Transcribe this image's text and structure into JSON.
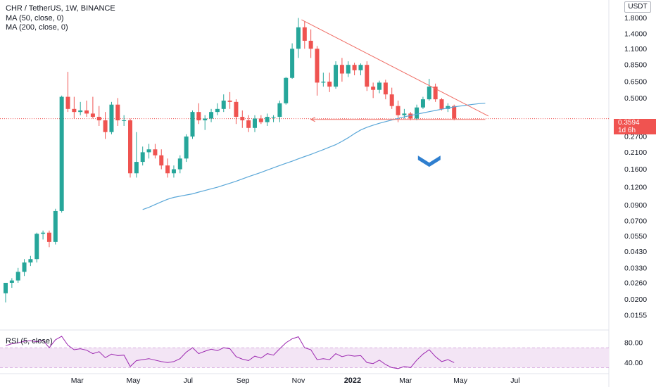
{
  "header": {
    "symbol_line": "CHR / TetherUS, 1W, BINANCE",
    "ma50_label": "MA (50, close, 0)",
    "ma200_label": "MA (200, close, 0)",
    "rsi_label": "RSI (5, close)",
    "currency": "USDT"
  },
  "price_tag": {
    "price": "0.3594",
    "countdown": "1d 6h",
    "color": "#f05350"
  },
  "colors": {
    "up": "#26a69a",
    "down": "#ef5350",
    "ma": "#5aa7d8",
    "trendline": "#ef6b63",
    "rsi": "#9c27b0",
    "rsi_band": "#f3e5f5",
    "arrow": "#2f7fcf"
  },
  "chart_data": {
    "type": "candlestick",
    "title": "CHR / TetherUS, 1W, BINANCE",
    "price_axis": {
      "scale": "log",
      "range": [
        0.0125,
        2.4
      ],
      "ticks": [
        "1.8000",
        "1.4000",
        "1.1000",
        "0.8500",
        "0.6500",
        "0.5000",
        "0.2700",
        "0.2100",
        "0.1600",
        "0.1200",
        "0.0900",
        "0.0700",
        "0.0550",
        "0.0430",
        "0.0330",
        "0.0260",
        "0.0200",
        "0.0155"
      ]
    },
    "time_axis": {
      "ticks": [
        {
          "label": "Mar",
          "week": 11.5
        },
        {
          "label": "May",
          "week": 20.5
        },
        {
          "label": "Jul",
          "week": 29.3
        },
        {
          "label": "Sep",
          "week": 38.1
        },
        {
          "label": "Nov",
          "week": 47
        },
        {
          "label": "2022",
          "week": 55.7
        },
        {
          "label": "Mar",
          "week": 64.2
        },
        {
          "label": "May",
          "week": 73
        },
        {
          "label": "Jul",
          "week": 81.8
        }
      ]
    },
    "candles": [
      [
        0.022,
        0.026,
        0.019,
        0.026
      ],
      [
        0.026,
        0.028,
        0.024,
        0.027
      ],
      [
        0.027,
        0.033,
        0.026,
        0.031
      ],
      [
        0.031,
        0.038,
        0.029,
        0.036
      ],
      [
        0.036,
        0.04,
        0.034,
        0.038
      ],
      [
        0.038,
        0.058,
        0.036,
        0.057
      ],
      [
        0.057,
        0.06,
        0.052,
        0.058
      ],
      [
        0.058,
        0.06,
        0.046,
        0.05
      ],
      [
        0.05,
        0.085,
        0.048,
        0.082
      ],
      [
        0.082,
        0.52,
        0.08,
        0.51
      ],
      [
        0.51,
        0.76,
        0.4,
        0.42
      ],
      [
        0.42,
        0.51,
        0.36,
        0.4
      ],
      [
        0.4,
        0.47,
        0.38,
        0.41
      ],
      [
        0.41,
        0.48,
        0.37,
        0.39
      ],
      [
        0.39,
        0.51,
        0.36,
        0.37
      ],
      [
        0.37,
        0.44,
        0.32,
        0.35
      ],
      [
        0.35,
        0.4,
        0.26,
        0.29
      ],
      [
        0.29,
        0.47,
        0.28,
        0.45
      ],
      [
        0.45,
        0.5,
        0.32,
        0.35
      ],
      [
        0.35,
        0.38,
        0.32,
        0.35
      ],
      [
        0.35,
        0.36,
        0.14,
        0.15
      ],
      [
        0.15,
        0.29,
        0.14,
        0.18
      ],
      [
        0.18,
        0.23,
        0.17,
        0.21
      ],
      [
        0.21,
        0.24,
        0.19,
        0.22
      ],
      [
        0.22,
        0.24,
        0.19,
        0.2
      ],
      [
        0.2,
        0.22,
        0.16,
        0.17
      ],
      [
        0.17,
        0.19,
        0.14,
        0.15
      ],
      [
        0.15,
        0.17,
        0.14,
        0.16
      ],
      [
        0.16,
        0.2,
        0.15,
        0.19
      ],
      [
        0.19,
        0.28,
        0.18,
        0.27
      ],
      [
        0.27,
        0.41,
        0.26,
        0.4
      ],
      [
        0.4,
        0.46,
        0.33,
        0.35
      ],
      [
        0.35,
        0.38,
        0.3,
        0.36
      ],
      [
        0.36,
        0.42,
        0.34,
        0.4
      ],
      [
        0.4,
        0.46,
        0.38,
        0.42
      ],
      [
        0.42,
        0.53,
        0.4,
        0.48
      ],
      [
        0.48,
        0.55,
        0.42,
        0.47
      ],
      [
        0.47,
        0.49,
        0.33,
        0.37
      ],
      [
        0.37,
        0.41,
        0.31,
        0.35
      ],
      [
        0.35,
        0.38,
        0.29,
        0.31
      ],
      [
        0.31,
        0.38,
        0.29,
        0.36
      ],
      [
        0.36,
        0.38,
        0.33,
        0.34
      ],
      [
        0.34,
        0.39,
        0.32,
        0.37
      ],
      [
        0.37,
        0.38,
        0.34,
        0.37
      ],
      [
        0.37,
        0.48,
        0.34,
        0.46
      ],
      [
        0.46,
        0.7,
        0.45,
        0.69
      ],
      [
        0.69,
        1.2,
        0.68,
        1.1
      ],
      [
        1.1,
        1.8,
        0.95,
        1.55
      ],
      [
        1.55,
        1.7,
        1.1,
        1.25
      ],
      [
        1.25,
        1.5,
        0.95,
        1.1
      ],
      [
        1.1,
        1.15,
        0.52,
        0.64
      ],
      [
        0.64,
        0.75,
        0.6,
        0.65
      ],
      [
        0.65,
        0.75,
        0.55,
        0.6
      ],
      [
        0.6,
        0.9,
        0.58,
        0.85
      ],
      [
        0.85,
        0.95,
        0.65,
        0.74
      ],
      [
        0.74,
        0.9,
        0.7,
        0.85
      ],
      [
        0.85,
        0.88,
        0.72,
        0.78
      ],
      [
        0.78,
        0.87,
        0.72,
        0.85
      ],
      [
        0.85,
        0.9,
        0.56,
        0.6
      ],
      [
        0.6,
        0.64,
        0.5,
        0.57
      ],
      [
        0.57,
        0.66,
        0.54,
        0.64
      ],
      [
        0.64,
        0.67,
        0.49,
        0.53
      ],
      [
        0.53,
        0.59,
        0.42,
        0.44
      ],
      [
        0.44,
        0.48,
        0.34,
        0.38
      ],
      [
        0.38,
        0.42,
        0.36,
        0.39
      ],
      [
        0.39,
        0.4,
        0.35,
        0.36
      ],
      [
        0.36,
        0.45,
        0.35,
        0.43
      ],
      [
        0.43,
        0.51,
        0.42,
        0.49
      ],
      [
        0.49,
        0.68,
        0.48,
        0.6
      ],
      [
        0.6,
        0.63,
        0.47,
        0.49
      ],
      [
        0.49,
        0.5,
        0.41,
        0.42
      ],
      [
        0.42,
        0.46,
        0.4,
        0.44
      ],
      [
        0.44,
        0.45,
        0.35,
        0.3594
      ]
    ],
    "series": [
      {
        "name": "MA (50, close, 0)",
        "start_week": 22,
        "values": [
          0.084,
          0.087,
          0.091,
          0.095,
          0.099,
          0.102,
          0.104,
          0.106,
          0.108,
          0.111,
          0.114,
          0.117,
          0.12,
          0.124,
          0.128,
          0.132,
          0.137,
          0.142,
          0.147,
          0.152,
          0.158,
          0.164,
          0.17,
          0.176,
          0.182,
          0.189,
          0.196,
          0.203,
          0.211,
          0.219,
          0.228,
          0.237,
          0.25,
          0.265,
          0.283,
          0.3,
          0.313,
          0.324,
          0.334,
          0.343,
          0.352,
          0.361,
          0.37,
          0.378,
          0.386,
          0.394,
          0.402,
          0.41,
          0.418,
          0.426,
          0.434,
          0.44,
          0.446,
          0.452,
          0.457,
          0.46
        ]
      },
      {
        "name": "RSI (5, close)",
        "start_week": 0,
        "values": [
          74,
          78,
          80,
          83,
          84,
          82,
          85,
          70,
          86,
          93,
          75,
          66,
          68,
          65,
          58,
          62,
          50,
          57,
          54,
          55,
          32,
          44,
          46,
          48,
          45,
          42,
          40,
          42,
          48,
          61,
          70,
          58,
          63,
          67,
          64,
          70,
          68,
          52,
          47,
          44,
          53,
          49,
          58,
          55,
          68,
          80,
          88,
          92,
          70,
          66,
          46,
          48,
          46,
          58,
          52,
          55,
          53,
          54,
          40,
          38,
          45,
          36,
          30,
          28,
          32,
          30,
          45,
          57,
          66,
          52,
          42,
          46,
          40
        ]
      }
    ],
    "rsi_axis": {
      "range": [
        22,
        100
      ],
      "ticks": [
        "80.00",
        "40.00"
      ],
      "band": [
        30,
        70
      ]
    },
    "annotations": [
      {
        "type": "trendline",
        "from": [
          47.5,
          1.75
        ],
        "to": [
          77.5,
          0.375
        ]
      },
      {
        "type": "support",
        "from": [
          49,
          0.355
        ],
        "to": [
          77,
          0.355
        ]
      },
      {
        "type": "down_arrow",
        "at": [
          68,
          0.186
        ]
      }
    ]
  }
}
